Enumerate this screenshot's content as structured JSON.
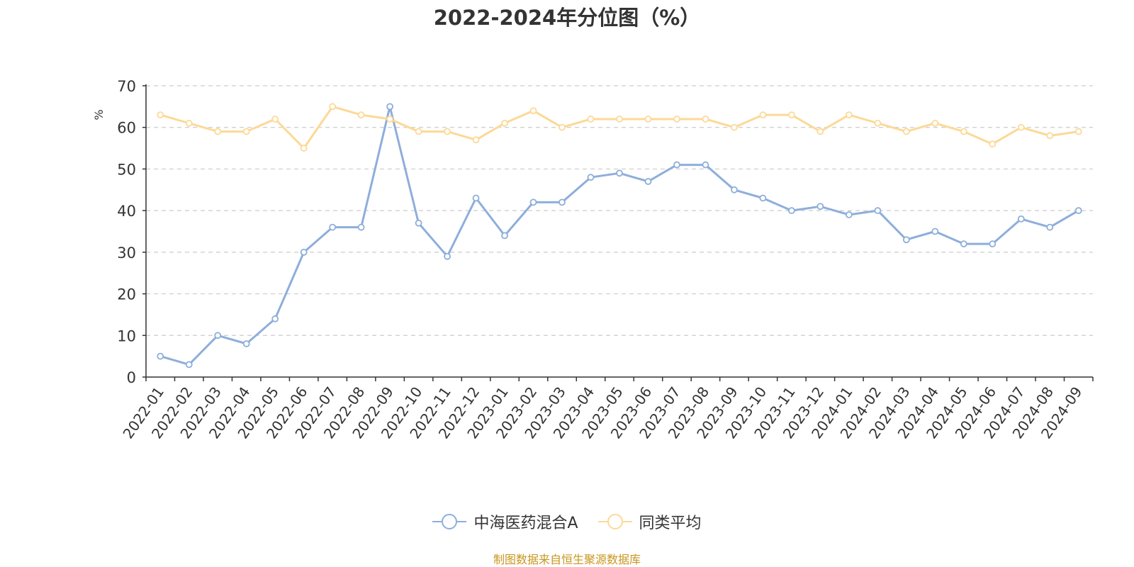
{
  "chart_data": {
    "type": "line",
    "title": "2022-2024年分位图（%）",
    "ylabel": "%",
    "ylim": [
      0,
      70
    ],
    "yticks": [
      0,
      10,
      20,
      30,
      40,
      50,
      60,
      70
    ],
    "grid": true,
    "legend_position": "bottom",
    "categories": [
      "2022-01",
      "2022-02",
      "2022-03",
      "2022-04",
      "2022-05",
      "2022-06",
      "2022-07",
      "2022-08",
      "2022-09",
      "2022-10",
      "2022-11",
      "2022-12",
      "2023-01",
      "2023-02",
      "2023-03",
      "2023-04",
      "2023-05",
      "2023-06",
      "2023-07",
      "2023-08",
      "2023-09",
      "2023-10",
      "2023-11",
      "2023-12",
      "2024-01",
      "2024-02",
      "2024-03",
      "2024-04",
      "2024-05",
      "2024-06",
      "2024-07",
      "2024-08",
      "2024-09"
    ],
    "series": [
      {
        "name": "中海医药混合A",
        "color": "#8eaedb",
        "values": [
          5,
          3,
          10,
          8,
          14,
          30,
          36,
          36,
          65,
          37,
          29,
          43,
          34,
          42,
          42,
          48,
          49,
          47,
          51,
          51,
          45,
          43,
          40,
          41,
          39,
          40,
          33,
          35,
          32,
          32,
          38,
          36,
          40
        ]
      },
      {
        "name": "同类平均",
        "color": "#fcd997",
        "values": [
          63,
          61,
          59,
          59,
          62,
          55,
          65,
          63,
          62,
          59,
          59,
          57,
          61,
          64,
          60,
          62,
          62,
          62,
          62,
          62,
          60,
          63,
          63,
          59,
          63,
          61,
          59,
          61,
          59,
          56,
          60,
          58,
          59
        ]
      }
    ]
  },
  "footer": {
    "source": "制图数据来自恒生聚源数据库"
  }
}
